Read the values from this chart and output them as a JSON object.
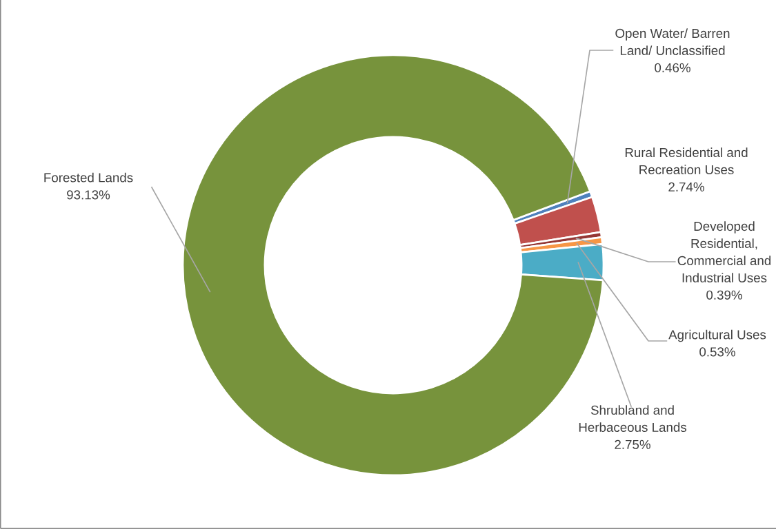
{
  "chart_data": {
    "type": "donut",
    "categories": [
      "Open Water/ Barren\nLand/ Unclassified",
      "Rural Residential and\nRecreation Uses",
      "Developed\nResidential,\nCommercial and\nIndustrial Uses",
      "Agricultural Uses",
      "Shrubland and\nHerbaceous Lands",
      "Forested Lands"
    ],
    "values": [
      0.46,
      2.74,
      0.39,
      0.53,
      2.75,
      93.13
    ],
    "value_labels": [
      "0.46%",
      "2.74%",
      "0.39%",
      "0.53%",
      "2.75%",
      "93.13%"
    ],
    "colors": [
      "#4f81bd",
      "#c0504d",
      "#953735",
      "#f79646",
      "#4bacc6",
      "#77933c"
    ],
    "legend": false
  }
}
